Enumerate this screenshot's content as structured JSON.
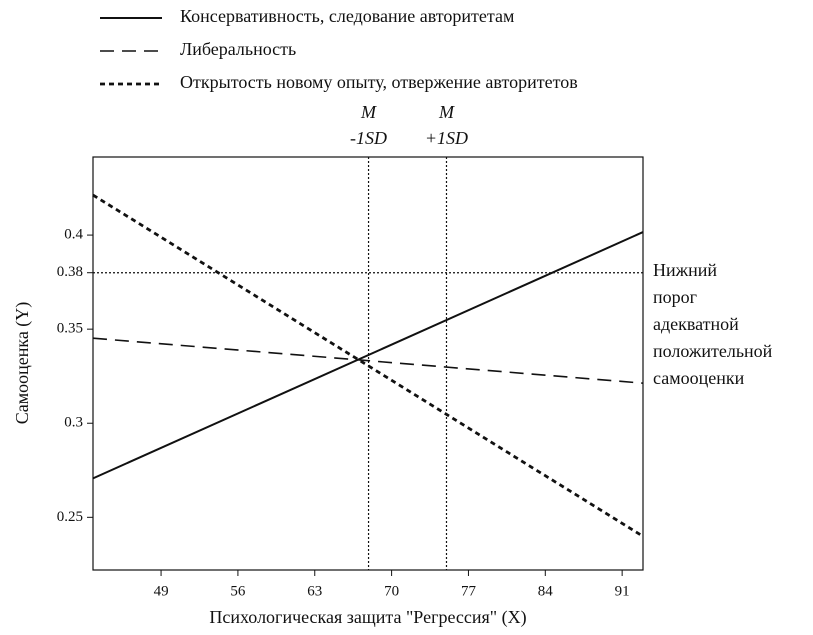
{
  "chart_data": {
    "type": "line",
    "xlabel": "Психологическая защита \"Регрессия\" (X)",
    "ylabel": "Самооценка (Y)",
    "x": [
      42.8,
      92.9
    ],
    "series": [
      {
        "name": "Консервативность, следование авторитетам",
        "color": "#111111",
        "line_style": "solid",
        "values": [
          0.2707,
          0.4016
        ]
      },
      {
        "name": "Либеральность",
        "color": "#111111",
        "line_style": "dashed",
        "values": [
          0.3452,
          0.3213
        ]
      },
      {
        "name": "Открытость новому опыту, отвержение авторитетов",
        "color": "#111111",
        "line_style": "dotted",
        "values": [
          0.4213,
          0.2399
        ]
      }
    ],
    "xlim": [
      42.8,
      92.9
    ],
    "xticks": [
      49,
      56,
      63,
      70,
      77,
      84,
      91
    ],
    "ylim": [
      0.222,
      0.4415
    ],
    "yticks": [
      0.25,
      0.3,
      0.35,
      0.38,
      0.4
    ],
    "grid": false,
    "legend": "top",
    "reference_lines": [
      {
        "axis": "x",
        "value": 67.9,
        "label": [
          "M",
          "-1SD"
        ]
      },
      {
        "axis": "x",
        "value": 75.0,
        "label": [
          "M",
          "+1SD"
        ]
      },
      {
        "axis": "y",
        "value": 0.38,
        "label": [
          "Нижний",
          "порог",
          "адекватной",
          "положительной",
          "самооценки"
        ]
      }
    ]
  }
}
